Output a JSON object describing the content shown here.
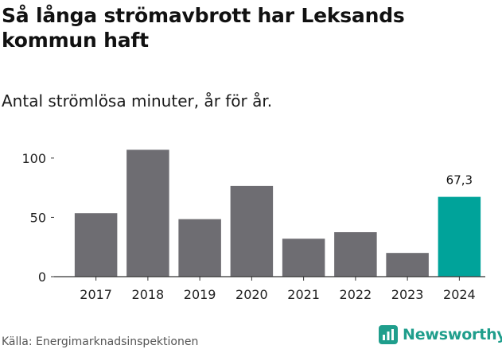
{
  "title": "Så långa strömavbrott har Leksands kommun haft",
  "subtitle": "Antal strömlösa minuter, år för år.",
  "source": "Källa: Energimarknadsinspektionen",
  "brand": {
    "name": "Newsworthy",
    "icon": "newsworthy-logo-icon",
    "color": "#1f9e8c"
  },
  "chart_data": {
    "type": "bar",
    "title": "Så långa strömavbrott har Leksands kommun haft",
    "subtitle": "Antal strömlösa minuter, år för år.",
    "xlabel": "",
    "ylabel": "",
    "categories": [
      "2017",
      "2018",
      "2019",
      "2020",
      "2021",
      "2022",
      "2023",
      "2024"
    ],
    "values": [
      53.5,
      107,
      48.5,
      76.5,
      32,
      37.5,
      20,
      67.3
    ],
    "ylim": [
      0,
      118
    ],
    "yticks": [
      0,
      50,
      100
    ],
    "grid": false,
    "bar_color": "#6e6d72",
    "highlight_color": "#00a39a",
    "highlight_index": 7,
    "annotations": [
      {
        "index": 7,
        "label": "67,3"
      }
    ]
  }
}
